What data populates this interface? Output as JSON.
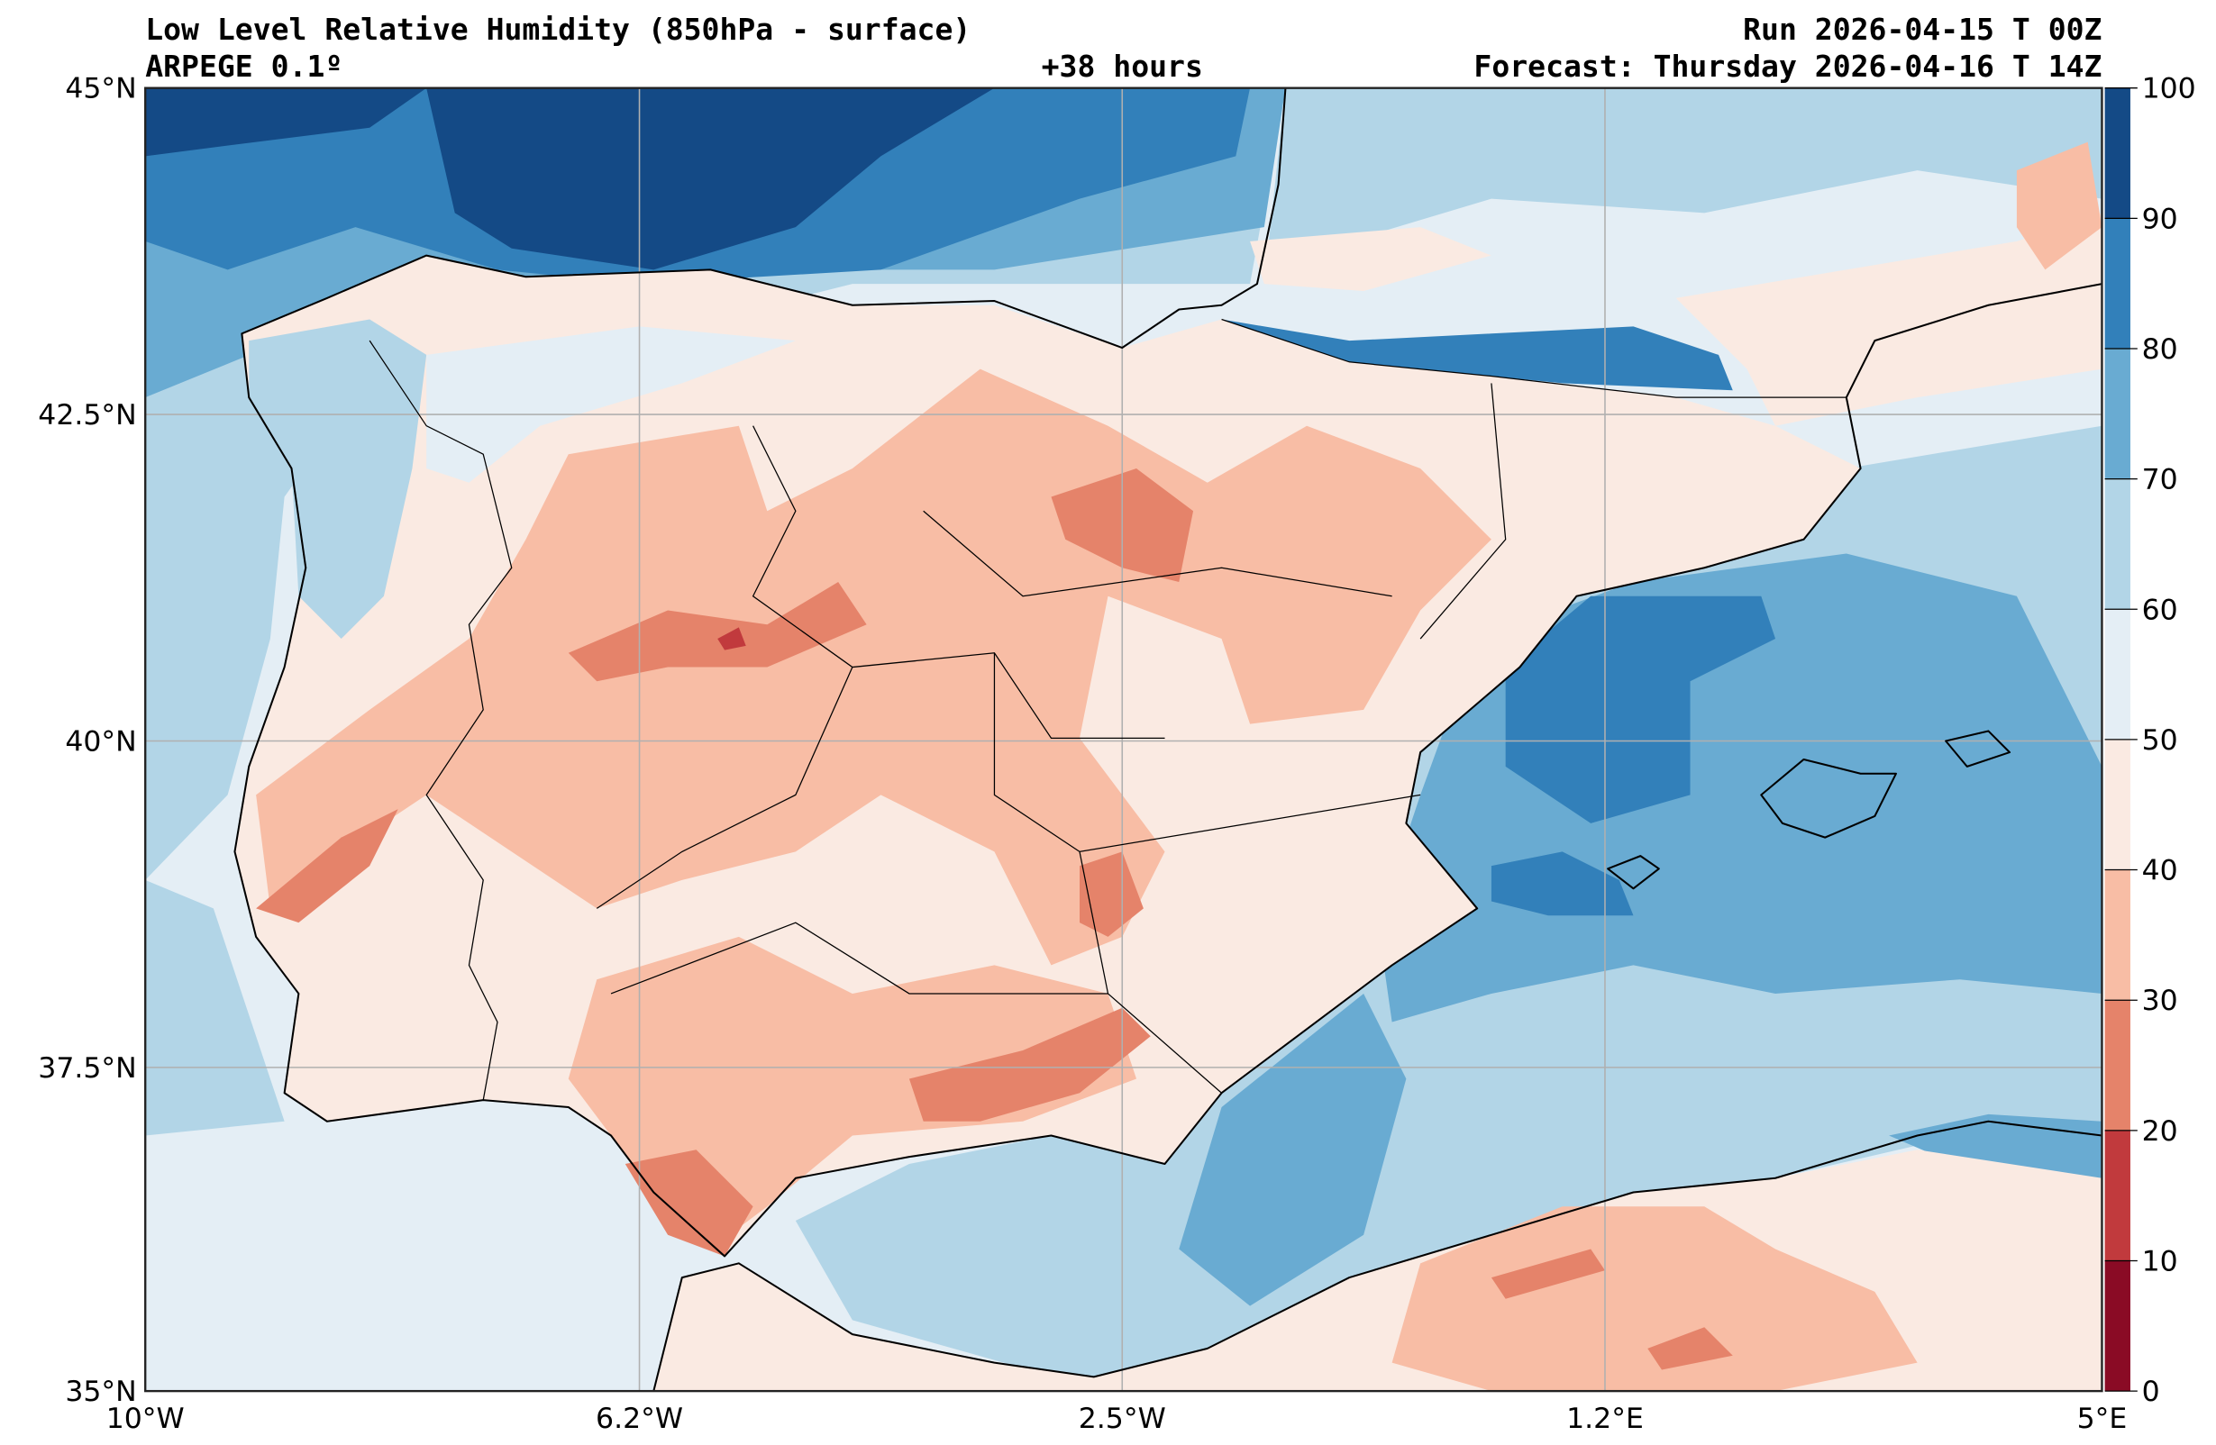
{
  "header": {
    "title": "Low Level Relative Humidity (850hPa - surface)",
    "model": "ARPEGE 0.1º",
    "lead_time": "+38 hours",
    "run": "Run 2026-04-15 T 00Z",
    "forecast": "Forecast: Thursday 2026-04-16 T 14Z"
  },
  "axes": {
    "lat_ticks": [
      "45°N",
      "42.5°N",
      "40°N",
      "37.5°N",
      "35°N"
    ],
    "lon_ticks": [
      "10°W",
      "6.2°W",
      "2.5°W",
      "1.2°E",
      "5°E"
    ]
  },
  "colorbar": {
    "tick_labels": [
      "0",
      "10",
      "20",
      "30",
      "40",
      "50",
      "60",
      "70",
      "80",
      "90",
      "100"
    ],
    "levels": [
      0,
      10,
      20,
      30,
      40,
      50,
      60,
      70,
      80,
      90,
      100
    ],
    "colors": [
      "#8a0b25",
      "#c13a3d",
      "#e5836a",
      "#f8bda5",
      "#faeae2",
      "#e4eef5",
      "#b2d5e7",
      "#69abd2",
      "#3280ba",
      "#144a86"
    ]
  }
}
